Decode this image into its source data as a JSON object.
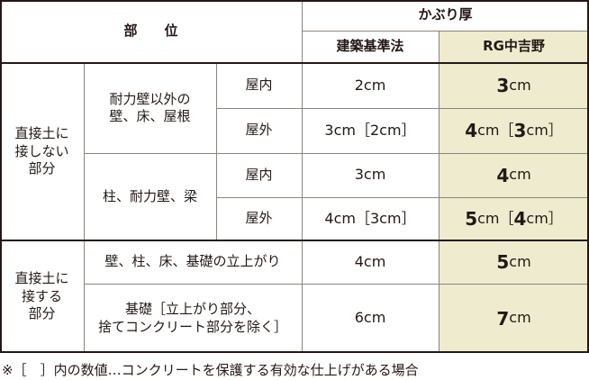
{
  "header": {
    "part": "部　　位",
    "cover": "かぶり厚",
    "law": "建築基準法",
    "rg": "RG中吉野"
  },
  "groups": [
    {
      "label": "直接土に\n接しない\n部分",
      "subgroups": [
        {
          "label": "耐力壁以外の\n壁、床、屋根",
          "rows": [
            {
              "loc": "屋内",
              "law": "2cm",
              "rg_num": "3",
              "rg_unit": "cm",
              "rg_br_num": "",
              "rg_br_unit": ""
            },
            {
              "loc": "屋外",
              "law": "3cm［2cm］",
              "rg_num": "4",
              "rg_unit": "cm［",
              "rg_br_num": "3",
              "rg_br_unit": "cm］"
            }
          ]
        },
        {
          "label": "柱、耐力壁、梁",
          "rows": [
            {
              "loc": "屋内",
              "law": "3cm",
              "rg_num": "4",
              "rg_unit": "cm",
              "rg_br_num": "",
              "rg_br_unit": ""
            },
            {
              "loc": "屋外",
              "law": "4cm［3cm］",
              "rg_num": "5",
              "rg_unit": "cm［",
              "rg_br_num": "4",
              "rg_br_unit": "cm］"
            }
          ]
        }
      ]
    },
    {
      "label": "直接土に\n接する\n部分",
      "rows": [
        {
          "part": "壁、柱、床、基礎の立上がり",
          "law": "4cm",
          "rg_num": "5",
          "rg_unit": "cm"
        },
        {
          "part": "基礎［立上がり部分、\n捨てコンクリート部分を除く］",
          "law": "6cm",
          "rg_num": "7",
          "rg_unit": "cm"
        }
      ]
    }
  ],
  "footnote": "※［　］内の数値…コンクリートを保護する有効な仕上げがある場合",
  "colors": {
    "highlight": "#eeebcf",
    "border": "#231815"
  }
}
